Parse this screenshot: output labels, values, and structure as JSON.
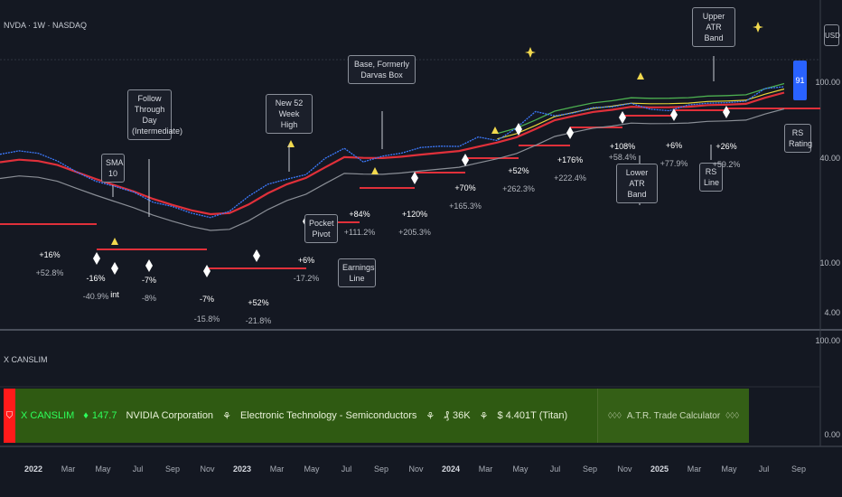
{
  "symbol_title": "NVDA · 1W · NASDAQ",
  "currency": "USD",
  "rs_rating_value": "91",
  "pane2_title": "X CANSLIM",
  "price_axis": [
    "100.00",
    "40.00",
    "10.00",
    "4.00"
  ],
  "pane2_axis": [
    "100.00",
    "0.00"
  ],
  "time_axis": [
    {
      "label": "2022",
      "year": true
    },
    {
      "label": "Mar",
      "year": false
    },
    {
      "label": "May",
      "year": false
    },
    {
      "label": "Jul",
      "year": false
    },
    {
      "label": "Sep",
      "year": false
    },
    {
      "label": "Nov",
      "year": false
    },
    {
      "label": "2023",
      "year": true
    },
    {
      "label": "Mar",
      "year": false
    },
    {
      "label": "May",
      "year": false
    },
    {
      "label": "Jul",
      "year": false
    },
    {
      "label": "Sep",
      "year": false
    },
    {
      "label": "Nov",
      "year": false
    },
    {
      "label": "2024",
      "year": true
    },
    {
      "label": "Mar",
      "year": false
    },
    {
      "label": "May",
      "year": false
    },
    {
      "label": "Jul",
      "year": false
    },
    {
      "label": "Sep",
      "year": false
    },
    {
      "label": "Nov",
      "year": false
    },
    {
      "label": "2025",
      "year": true
    },
    {
      "label": "Mar",
      "year": false
    },
    {
      "label": "May",
      "year": false
    },
    {
      "label": "Jul",
      "year": false
    },
    {
      "label": "Sep",
      "year": false
    }
  ],
  "annotations": [
    "SMA 10",
    "Follow Through Day (Intermediate)",
    "New 52 Week High",
    "Base, Formerly Darvas Box",
    "Pocket Pivot",
    "Earnings Line",
    "Lower ATR Band",
    "Upper ATR Band",
    "RS Line",
    "RS Rating"
  ],
  "pct_labels": [
    {
      "a": "+16%",
      "b": "+52.8%"
    },
    {
      "a": "-16%",
      "b": "-40.9%"
    },
    {
      "a": "int",
      "b": ""
    },
    {
      "a": "-7%",
      "b": "-8%"
    },
    {
      "a": "-7%",
      "b": "-15.8%"
    },
    {
      "a": "+52%",
      "b": "-21.8%"
    },
    {
      "a": "+6%",
      "b": "-17.2%"
    },
    {
      "a": "+84%",
      "b": "+111.2%"
    },
    {
      "a": "+120%",
      "b": "+205.3%"
    },
    {
      "a": "+70%",
      "b": "+165.3%"
    },
    {
      "a": "+52%",
      "b": "+262.3%"
    },
    {
      "a": "+176%",
      "b": "+222.4%"
    },
    {
      "a": "+108%",
      "b": "+58.4%"
    },
    {
      "a": "+6%",
      "b": "+77.9%"
    },
    {
      "a": "+26%",
      "b": "+59.2%"
    }
  ],
  "banner": {
    "logo": "X CANSLIM",
    "score": "147.7",
    "company": "NVIDIA Corporation",
    "sector": "Electronic Technology - Semiconductors",
    "volume": "36K",
    "market_cap": "$ 4.401T (Titan)",
    "calculator": "A.T.R. Trade Calculator"
  },
  "colors": {
    "background": "#141822",
    "ma_line": "#e0303a",
    "price_line": "#3d7bff",
    "rs_line": "#8a8e96",
    "green_band": "#4caf50",
    "yellow_band": "#e6d63a",
    "banner_bg": "#2f5a12",
    "banner_flag": "#ff1a1a"
  },
  "chart_data": {
    "type": "line",
    "series": [
      {
        "name": "",
        "values": [
          45.5,
          48.9,
          46.5,
          39.6,
          31.7,
          26.2,
          23.5,
          20.9,
          17.0,
          15.6,
          13.6,
          12.4,
          14.1,
          19.2,
          24.6,
          27.3,
          30.0,
          41.9,
          51.5,
          38.9,
          43.8,
          46.6,
          52.3,
          53.7,
          53.5,
          64.9,
          60.4,
          78.1,
          109.6,
          100.3,
          106.6,
          118.8,
          120.7,
          129.4,
          114.8,
          111.4,
          125.4,
          130.0,
          131.4,
          135.6,
          176.0,
          182.3
        ]
      },
      {
        "name": "SMA 10",
        "values": [
          38.7,
          40.7,
          39.6,
          36.5,
          31.6,
          27.4,
          24.1,
          21.2,
          18.2,
          16.1,
          14.4,
          13.3,
          13.6,
          16.2,
          20.4,
          24.6,
          28.0,
          34.8,
          42.9,
          42.3,
          42.1,
          43.3,
          45.2,
          46.9,
          48.7,
          53.2,
          58.0,
          64.5,
          76.5,
          91.7,
          100.0,
          108.5,
          113.6,
          120.6,
          119.3,
          119.6,
          121.0,
          125.0,
          126.3,
          128.4,
          145.4,
          161.4
        ]
      }
    ]
  }
}
